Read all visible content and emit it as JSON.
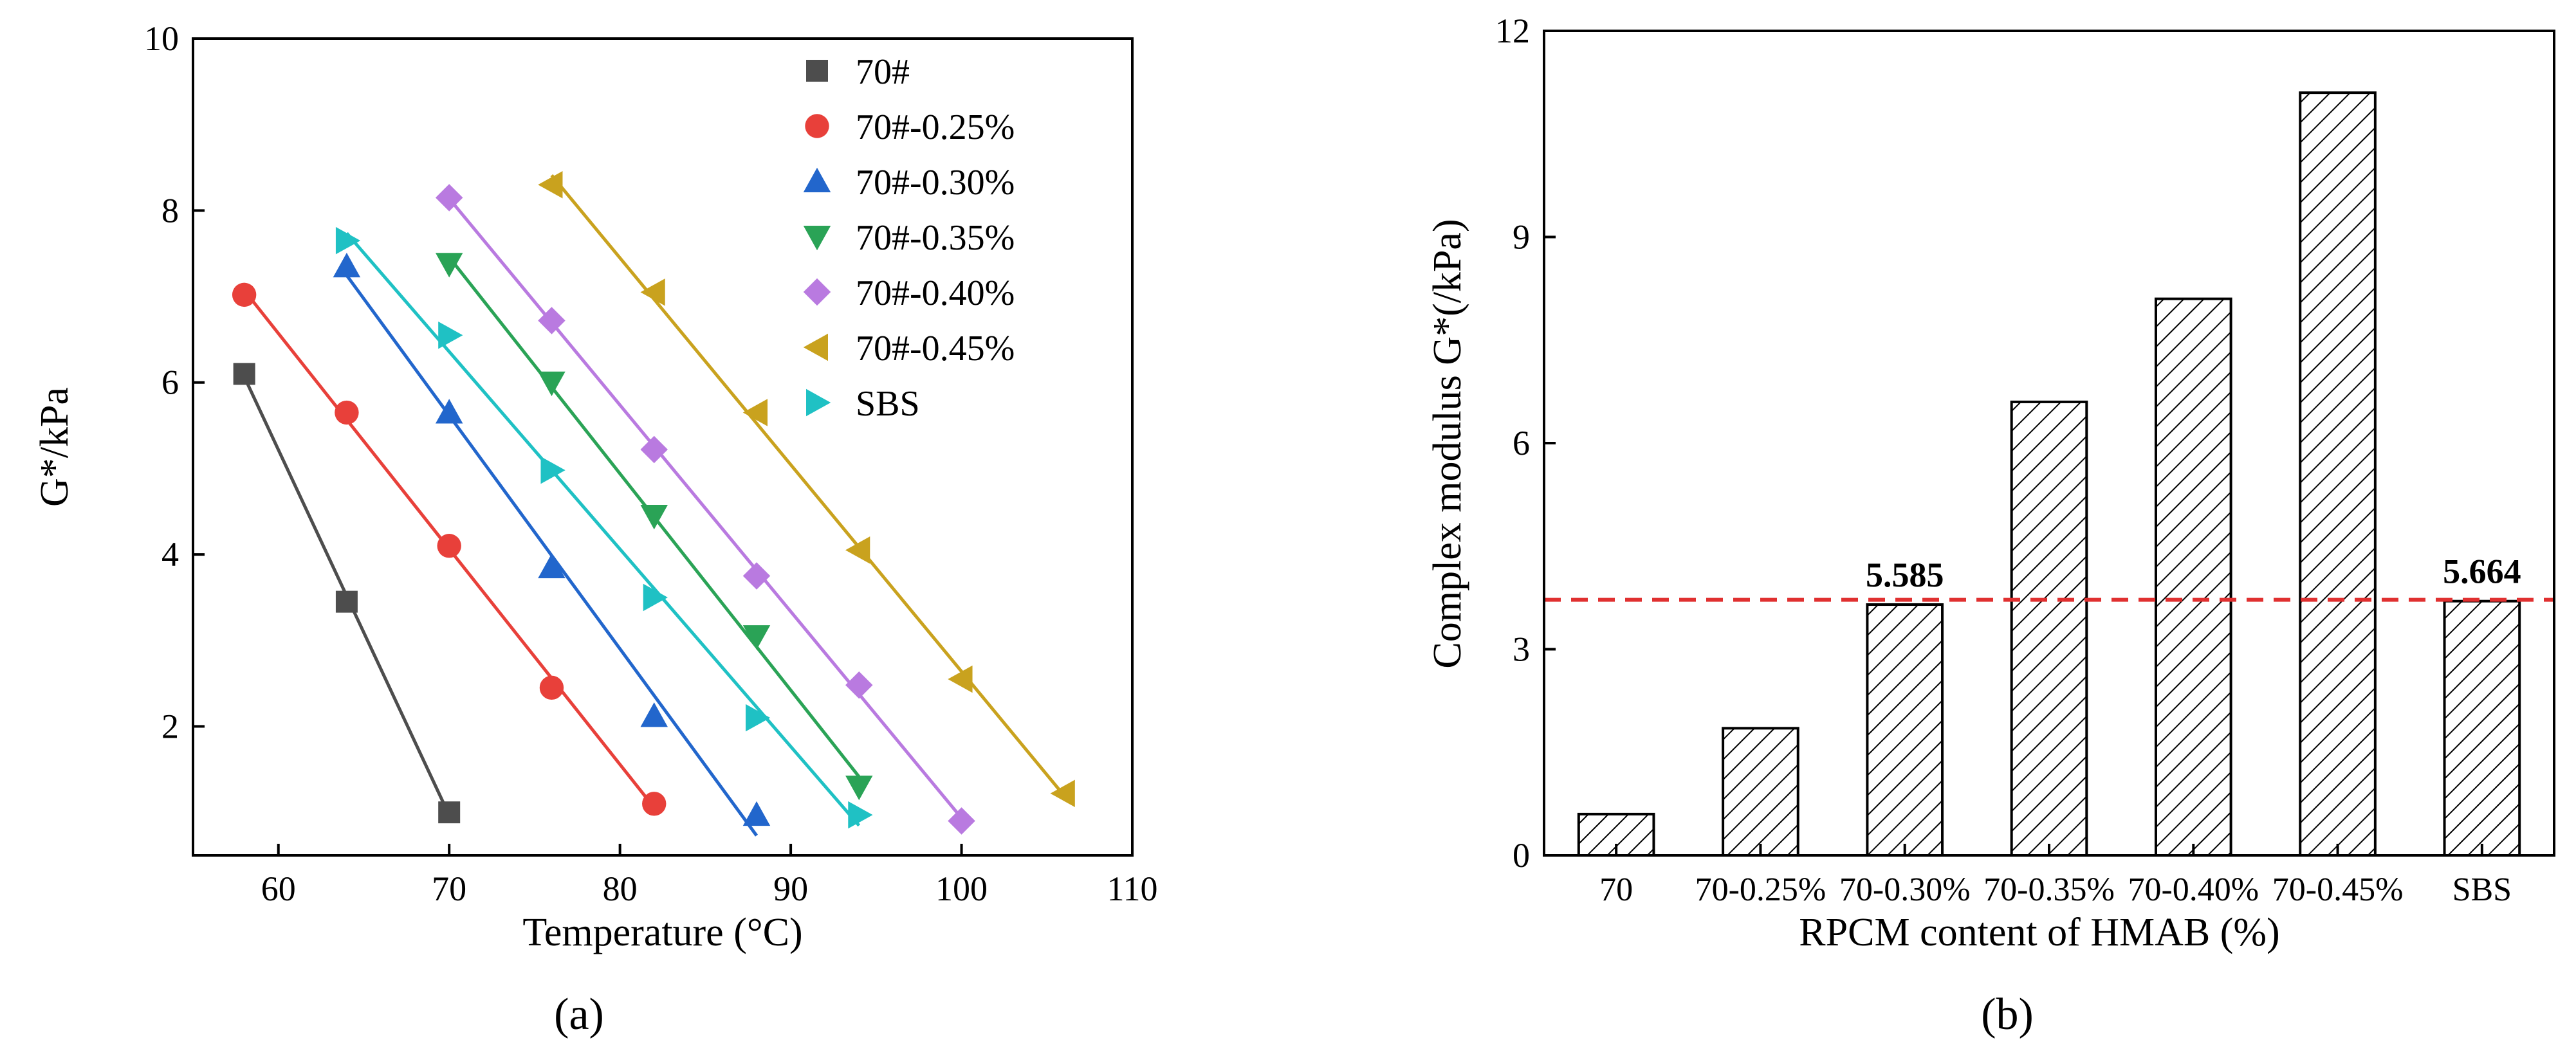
{
  "chart_data": [
    {
      "type": "scatter",
      "panel_label": "(a)",
      "xlabel": "Temperature (°C)",
      "ylabel": "G*/kPa",
      "xlim": [
        55,
        110
      ],
      "ylim": [
        0.5,
        10
      ],
      "xticks": [
        60,
        70,
        80,
        90,
        100,
        110
      ],
      "yticks": [
        2,
        4,
        6,
        8,
        10
      ],
      "legend_position": "top-right",
      "series": [
        {
          "name": "70#",
          "marker": "square",
          "color": "#4d4d4d",
          "x": [
            58,
            64,
            70
          ],
          "y": [
            6.1,
            3.45,
            1.0
          ]
        },
        {
          "name": "70#-0.25%",
          "marker": "circle",
          "color": "#e8403a",
          "x": [
            58,
            64,
            70,
            76,
            82
          ],
          "y": [
            7.02,
            5.65,
            4.1,
            2.45,
            1.1
          ]
        },
        {
          "name": "70#-0.30%",
          "marker": "triangle-up",
          "color": "#2266cc",
          "x": [
            64,
            70,
            76,
            82,
            88
          ],
          "y": [
            7.35,
            5.65,
            3.85,
            2.12,
            0.97
          ]
        },
        {
          "name": "70#-0.35%",
          "marker": "triangle-down",
          "color": "#2aa356",
          "x": [
            70,
            76,
            82,
            88,
            94
          ],
          "y": [
            7.38,
            6.0,
            4.45,
            3.05,
            1.3
          ]
        },
        {
          "name": "70#-0.40%",
          "marker": "diamond",
          "color": "#b97ae0",
          "x": [
            70,
            76,
            82,
            88,
            94,
            100
          ],
          "y": [
            8.15,
            6.72,
            5.22,
            3.75,
            2.48,
            0.9
          ]
        },
        {
          "name": "70#-0.45%",
          "marker": "triangle-left",
          "color": "#c9a21e",
          "x": [
            76,
            82,
            88,
            94,
            100,
            106
          ],
          "y": [
            8.3,
            7.05,
            5.65,
            4.05,
            2.55,
            1.22
          ]
        },
        {
          "name": "SBS",
          "marker": "triangle-right",
          "color": "#1fc1c4",
          "x": [
            64,
            70,
            76,
            82,
            88,
            94
          ],
          "y": [
            7.65,
            6.55,
            4.98,
            3.5,
            2.1,
            0.97
          ]
        }
      ]
    },
    {
      "type": "bar",
      "panel_label": "(b)",
      "xlabel": "RPCM content of HMAB (%)",
      "ylabel": "Complex modulus G*(/kPa)",
      "ylim": [
        0,
        12
      ],
      "yticks": [
        0,
        3,
        6,
        9,
        12
      ],
      "categories": [
        "70",
        "70-0.25%",
        "70-0.30%",
        "70-0.35%",
        "70-0.40%",
        "70-0.45%",
        "SBS"
      ],
      "values": [
        0.6,
        1.85,
        3.65,
        6.6,
        8.1,
        11.1,
        3.7
      ],
      "bar_pattern": "diagonal-hatch",
      "reference_line": {
        "value": 3.72,
        "style": "dashed",
        "color": "#e03030"
      },
      "annotations": [
        {
          "category": "70-0.30%",
          "text": "5.585"
        },
        {
          "category": "SBS",
          "text": "5.664"
        }
      ]
    }
  ]
}
